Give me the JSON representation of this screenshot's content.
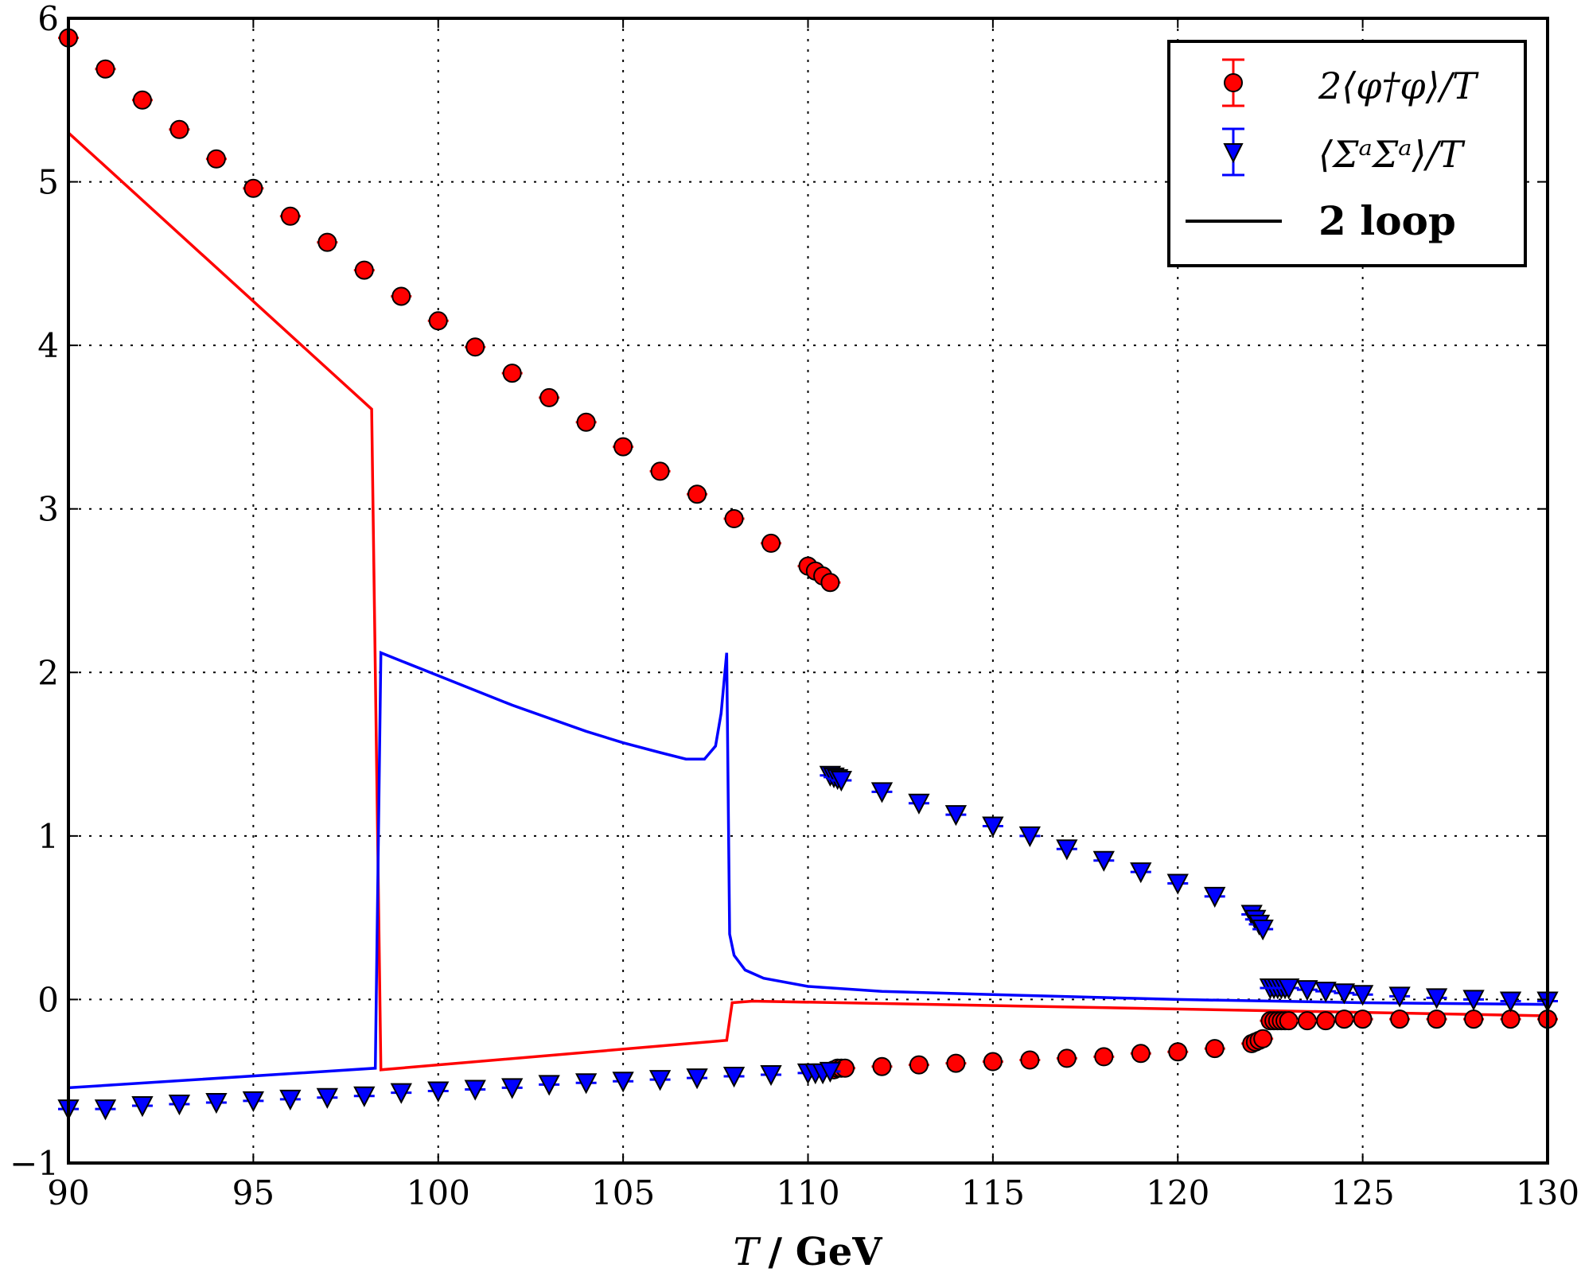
{
  "chart_data": {
    "type": "scatter",
    "xlabel": "T / GeV",
    "xlabel_parts": {
      "var": "T",
      "unit": "/ GeV"
    },
    "ylabel": "",
    "xlim": [
      90,
      130
    ],
    "ylim": [
      -1,
      6
    ],
    "xticks": [
      90,
      95,
      100,
      105,
      110,
      115,
      120,
      125,
      130
    ],
    "yticks": [
      -1,
      0,
      1,
      2,
      3,
      4,
      5,
      6
    ],
    "ytick_labels": [
      "−1",
      "0",
      "1",
      "2",
      "3",
      "4",
      "5",
      "6"
    ],
    "grid": true,
    "legend_position": "top-right",
    "legend": [
      "2⟨φ†φ⟩/T",
      "⟨ΣᵃΣᵃ⟩/T",
      "2 loop"
    ],
    "series": [
      {
        "name": "2⟨φ†φ⟩/T",
        "kind": "points",
        "marker": "circle",
        "color": "#ff0000",
        "x": [
          90,
          91,
          92,
          93,
          94,
          95,
          96,
          97,
          98,
          99,
          100,
          101,
          102,
          103,
          104,
          105,
          106,
          107,
          108,
          109,
          110,
          110.2,
          110.4,
          110.6,
          110.7,
          110.8,
          110.9,
          111,
          112,
          113,
          114,
          115,
          116,
          117,
          118,
          119,
          120,
          121,
          122,
          122.1,
          122.2,
          122.3,
          122.5,
          122.6,
          122.7,
          122.8,
          122.9,
          123,
          123.5,
          124,
          124.5,
          125,
          126,
          127,
          128,
          129,
          130
        ],
        "y": [
          5.88,
          5.69,
          5.5,
          5.32,
          5.14,
          4.96,
          4.79,
          4.63,
          4.46,
          4.3,
          4.15,
          3.99,
          3.83,
          3.68,
          3.53,
          3.38,
          3.23,
          3.09,
          2.94,
          2.79,
          2.65,
          2.62,
          2.59,
          2.55,
          -0.43,
          -0.42,
          -0.42,
          -0.42,
          -0.41,
          -0.4,
          -0.39,
          -0.38,
          -0.37,
          -0.36,
          -0.35,
          -0.33,
          -0.32,
          -0.3,
          -0.27,
          -0.26,
          -0.25,
          -0.24,
          -0.13,
          -0.13,
          -0.13,
          -0.13,
          -0.13,
          -0.13,
          -0.13,
          -0.13,
          -0.12,
          -0.12,
          -0.12,
          -0.12,
          -0.12,
          -0.12,
          -0.12
        ]
      },
      {
        "name": "⟨ΣᵃΣᵃ⟩/T",
        "kind": "points",
        "marker": "triangle-down",
        "color": "#0000ff",
        "x": [
          90,
          91,
          92,
          93,
          94,
          95,
          96,
          97,
          98,
          99,
          100,
          101,
          102,
          103,
          104,
          105,
          106,
          107,
          108,
          109,
          110,
          110.2,
          110.4,
          110.6,
          110.6,
          110.7,
          110.8,
          110.9,
          112,
          113,
          114,
          115,
          116,
          117,
          118,
          119,
          120,
          121,
          122,
          122.1,
          122.2,
          122.3,
          122.5,
          122.6,
          122.7,
          122.8,
          122.9,
          123,
          123.5,
          124,
          124.5,
          125,
          126,
          127,
          128,
          129,
          130
        ],
        "y": [
          -0.67,
          -0.67,
          -0.65,
          -0.64,
          -0.63,
          -0.62,
          -0.61,
          -0.6,
          -0.59,
          -0.57,
          -0.56,
          -0.55,
          -0.54,
          -0.52,
          -0.51,
          -0.5,
          -0.49,
          -0.48,
          -0.47,
          -0.46,
          -0.45,
          -0.45,
          -0.45,
          -0.44,
          1.37,
          1.36,
          1.35,
          1.34,
          1.27,
          1.2,
          1.13,
          1.06,
          1.0,
          0.92,
          0.85,
          0.78,
          0.71,
          0.63,
          0.52,
          0.49,
          0.46,
          0.43,
          0.07,
          0.07,
          0.07,
          0.07,
          0.07,
          0.07,
          0.06,
          0.05,
          0.04,
          0.03,
          0.02,
          0.01,
          0.0,
          -0.01,
          -0.01
        ]
      },
      {
        "name": "2 loop",
        "kind": "line",
        "color": "#ff0000",
        "x": [
          90,
          98.2,
          98.45,
          107.8,
          107.95,
          108.5,
          130
        ],
        "y": [
          5.3,
          3.61,
          -0.43,
          -0.25,
          -0.02,
          -0.01,
          -0.1
        ]
      },
      {
        "name": "2 loop",
        "kind": "line",
        "color": "#0000ff",
        "x": [
          90,
          98.3,
          98.45,
          100,
          102,
          104,
          105,
          106,
          106.7,
          107.2,
          107.5,
          107.65,
          107.8,
          107.88,
          108,
          108.3,
          108.8,
          110,
          112,
          115,
          120,
          125,
          130
        ],
        "y": [
          -0.54,
          -0.42,
          2.12,
          1.98,
          1.8,
          1.64,
          1.57,
          1.51,
          1.47,
          1.47,
          1.55,
          1.75,
          2.12,
          0.4,
          0.27,
          0.18,
          0.13,
          0.08,
          0.05,
          0.03,
          0.0,
          -0.02,
          -0.03
        ]
      }
    ]
  }
}
